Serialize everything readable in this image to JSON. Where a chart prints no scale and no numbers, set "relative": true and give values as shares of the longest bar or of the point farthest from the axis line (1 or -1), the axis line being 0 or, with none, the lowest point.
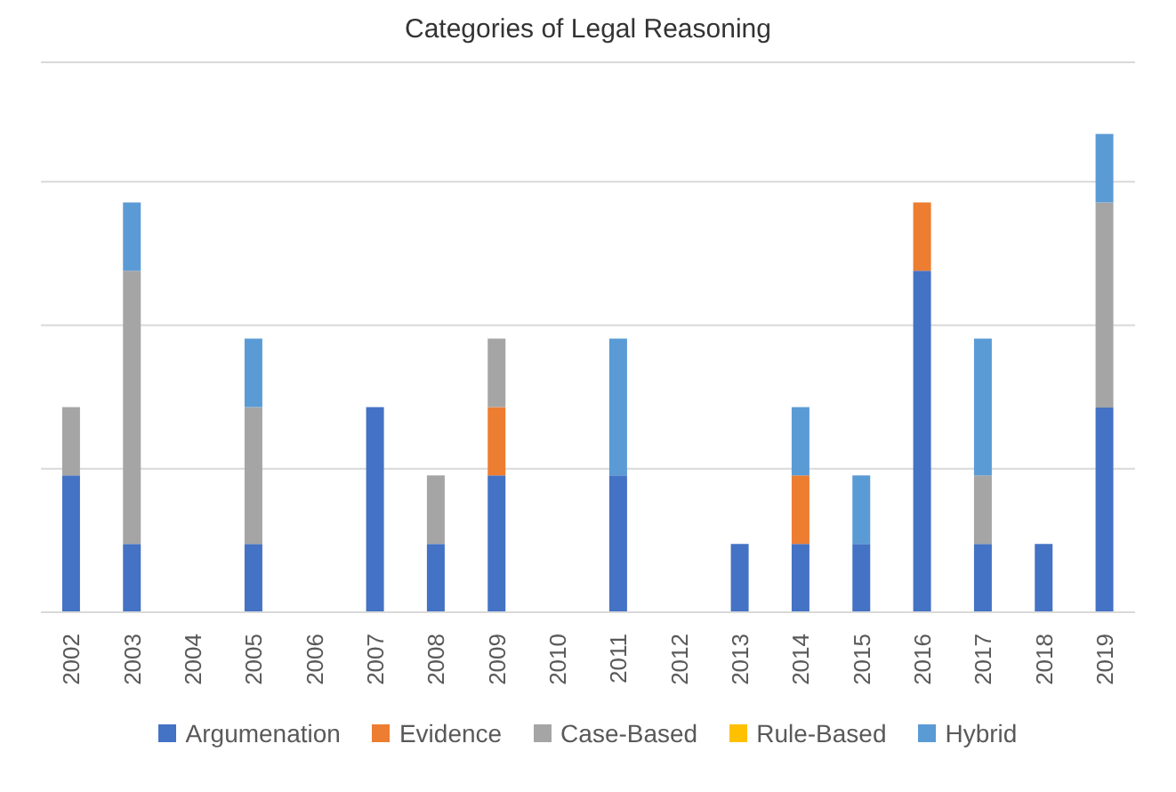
{
  "chart_data": {
    "type": "bar",
    "title": "Categories of Legal Reasoning",
    "relative": true,
    "stacked": true,
    "grid": "y",
    "legend": "bottom",
    "categories": [
      "2002",
      "2003",
      "2004",
      "2005",
      "2006",
      "2007",
      "2008",
      "2009",
      "2010",
      "2011",
      "2012",
      "2013",
      "2014",
      "2015",
      "2016",
      "2017",
      "2018",
      "2019"
    ],
    "series": [
      {
        "name": "Argumenation",
        "color": "#4472c4",
        "values": [
          0.286,
          0.143,
          0,
          0.143,
          0,
          0.429,
          0.143,
          0.286,
          0,
          0.286,
          0,
          0.143,
          0.143,
          0.143,
          0.714,
          0.143,
          0.143,
          0.428
        ]
      },
      {
        "name": "Evidence",
        "color": "#ed7d31",
        "values": [
          0,
          0,
          0,
          0,
          0,
          0,
          0,
          0.143,
          0,
          0,
          0,
          0,
          0.143,
          0,
          0.143,
          0,
          0,
          0
        ]
      },
      {
        "name": "Case-Based",
        "color": "#a5a5a5",
        "values": [
          0.143,
          0.571,
          0,
          0.286,
          0,
          0,
          0.143,
          0.143,
          0,
          0,
          0,
          0,
          0,
          0,
          0,
          0.143,
          0,
          0.429
        ]
      },
      {
        "name": "Rule-Based",
        "color": "#ffc000",
        "values": [
          0,
          0,
          0,
          0,
          0,
          0,
          0,
          0,
          0,
          0,
          0,
          0,
          0,
          0,
          0,
          0,
          0,
          0
        ]
      },
      {
        "name": "Hybrid",
        "color": "#5b9bd5",
        "values": [
          0,
          0.143,
          0,
          0.143,
          0,
          0,
          0,
          0,
          0,
          0.286,
          0,
          0,
          0.143,
          0.143,
          0,
          0.286,
          0,
          0.143
        ]
      }
    ]
  }
}
